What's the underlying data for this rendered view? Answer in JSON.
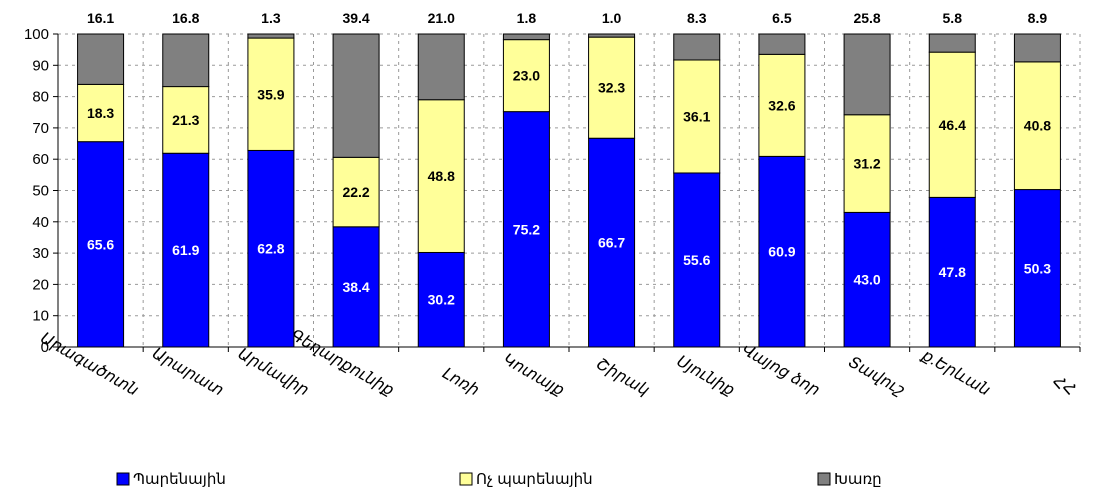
{
  "chart_data": {
    "type": "bar",
    "stacked": true,
    "categories": [
      "Արագածոտն",
      "Արարատ",
      "Արմավիր",
      "Գեղարքունիք",
      "Լոռի",
      "Կոտայք",
      "Շիրակ",
      "Սյունիք",
      "Վայոց ձոր",
      "Տավուշ",
      "ք.Երևան",
      "ՀՀ"
    ],
    "series": [
      {
        "name": "Պարենային",
        "color": "#0000ff",
        "label_color": "#ffffff",
        "values": [
          65.6,
          61.9,
          62.8,
          38.4,
          30.2,
          75.2,
          66.7,
          55.6,
          60.9,
          43.0,
          47.8,
          50.3
        ]
      },
      {
        "name": "Ոչ պարենային",
        "color": "#ffff99",
        "label_color": "#000000",
        "values": [
          18.3,
          21.3,
          35.9,
          22.2,
          48.8,
          23.0,
          32.3,
          36.1,
          32.6,
          31.2,
          46.4,
          40.8
        ]
      },
      {
        "name": "Խառը",
        "color": "#808080",
        "label_color": "#000000",
        "values": [
          16.1,
          16.8,
          1.3,
          39.4,
          21.0,
          1.8,
          1.0,
          8.3,
          6.5,
          25.8,
          5.8,
          8.9
        ]
      }
    ],
    "ylim": [
      0,
      100
    ],
    "yticks": [
      0,
      10,
      20,
      30,
      40,
      50,
      60,
      70,
      80,
      90,
      100
    ],
    "grid": true,
    "legend_position": "bottom",
    "title": "",
    "xlabel": "",
    "ylabel": ""
  }
}
